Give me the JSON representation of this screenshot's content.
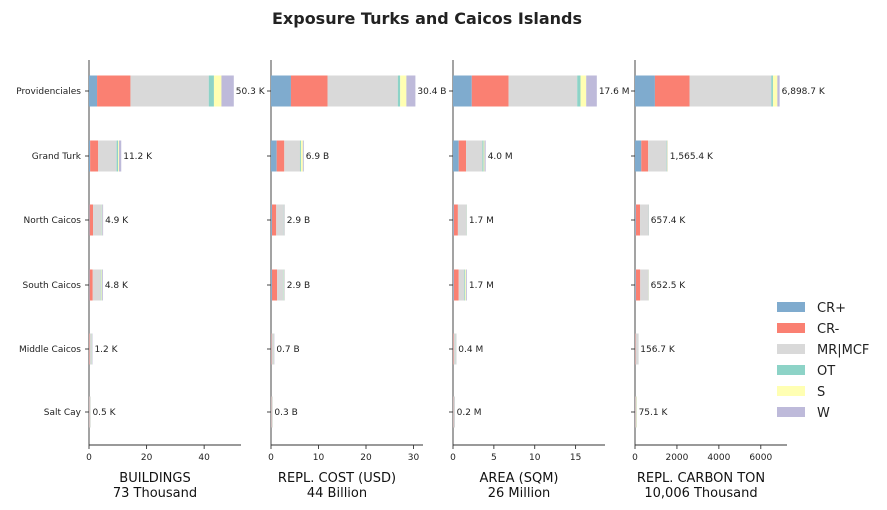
{
  "title": "Exposure Turks and Caicos Islands",
  "chart_data": {
    "type": "bar",
    "orientation": "horizontal",
    "stacked": true,
    "categories": [
      "Providenciales",
      "Grand Turk",
      "North Caicos",
      "South Caicos",
      "Middle Caicos",
      "Salt Cay"
    ],
    "legend": {
      "position": "right",
      "items": [
        {
          "name": "CR+",
          "color": "#7fabce"
        },
        {
          "name": "CR-",
          "color": "#fa8072"
        },
        {
          "name": "MR|MCF",
          "color": "#d9d9d9"
        },
        {
          "name": "OT",
          "color": "#8dd3c7"
        },
        {
          "name": "S",
          "color": "#ffffb3"
        },
        {
          "name": "W",
          "color": "#bebada"
        }
      ]
    },
    "panels": [
      {
        "xlabel": "BUILDINGS",
        "total": "73 Thousand",
        "xlim": [
          0,
          52.8
        ],
        "xticks": [
          0,
          20,
          40
        ],
        "labels": [
          "50.3 K",
          "11.2 K",
          "4.9 K",
          "4.8 K",
          "1.2 K",
          "0.5 K"
        ],
        "values": [
          [
            2.8,
            11.6,
            27.2,
            1.8,
            2.6,
            4.3
          ],
          [
            0.4,
            2.8,
            6.4,
            0.5,
            0.3,
            0.8
          ],
          [
            0.2,
            1.2,
            2.9,
            0.15,
            0.15,
            0.3
          ],
          [
            0.2,
            1.1,
            2.8,
            0.2,
            0.2,
            0.3
          ],
          [
            0.05,
            0.2,
            0.7,
            0.05,
            0.05,
            0.15
          ],
          [
            0.02,
            0.08,
            0.3,
            0.02,
            0.02,
            0.06
          ]
        ]
      },
      {
        "xlabel": "REPL. COST (USD)",
        "total": "44 Billion",
        "xlim": [
          0,
          32
        ],
        "xticks": [
          0,
          10,
          20,
          30
        ],
        "labels": [
          "30.4 B",
          "6.9 B",
          "2.9 B",
          "2.9 B",
          "0.7 B",
          "0.3 B"
        ],
        "values": [
          [
            4.2,
            7.7,
            14.8,
            0.5,
            1.3,
            1.9
          ],
          [
            1.2,
            1.6,
            3.3,
            0.2,
            0.4,
            0.2
          ],
          [
            0.2,
            0.9,
            1.6,
            0.05,
            0.05,
            0.1
          ],
          [
            0.2,
            1.1,
            1.3,
            0.1,
            0.1,
            0.1
          ],
          [
            0.05,
            0.1,
            0.4,
            0.03,
            0.02,
            0.1
          ],
          [
            0.02,
            0.05,
            0.18,
            0.01,
            0.01,
            0.03
          ]
        ]
      },
      {
        "xlabel": "AREA (SQM)",
        "total": "26 Million",
        "xlim": [
          0,
          18.6
        ],
        "xticks": [
          0,
          5,
          10,
          15
        ],
        "labels": [
          "17.6 M",
          "4.0 M",
          "1.7 M",
          "1.7 M",
          "0.4 M",
          "0.2 M"
        ],
        "values": [
          [
            2.3,
            4.5,
            8.4,
            0.4,
            0.7,
            1.3
          ],
          [
            0.7,
            0.9,
            2.0,
            0.15,
            0.1,
            0.15
          ],
          [
            0.1,
            0.5,
            1.0,
            0.03,
            0.03,
            0.04
          ],
          [
            0.1,
            0.6,
            0.7,
            0.1,
            0.1,
            0.1
          ],
          [
            0.02,
            0.07,
            0.25,
            0.02,
            0.02,
            0.02
          ],
          [
            0.01,
            0.03,
            0.14,
            0.01,
            0.005,
            0.005
          ]
        ]
      },
      {
        "xlabel": "REPL. CARBON TON",
        "total": "10,006 Thousand",
        "xlim": [
          0,
          7250
        ],
        "xticks": [
          0,
          2000,
          4000,
          6000
        ],
        "labels": [
          "6,898.7 K",
          "1,565.4 K",
          "657.4 K",
          "652.5 K",
          "156.7 K",
          "75.1 K"
        ],
        "values": [
          [
            950,
            1650,
            3900,
            80,
            210,
            109
          ],
          [
            300,
            330,
            880,
            20,
            20,
            15
          ],
          [
            40,
            200,
            400,
            5,
            7,
            5
          ],
          [
            40,
            210,
            370,
            10,
            12,
            10
          ],
          [
            8,
            20,
            120,
            2,
            3,
            3
          ],
          [
            3,
            10,
            60,
            1,
            1,
            0
          ]
        ]
      }
    ]
  }
}
